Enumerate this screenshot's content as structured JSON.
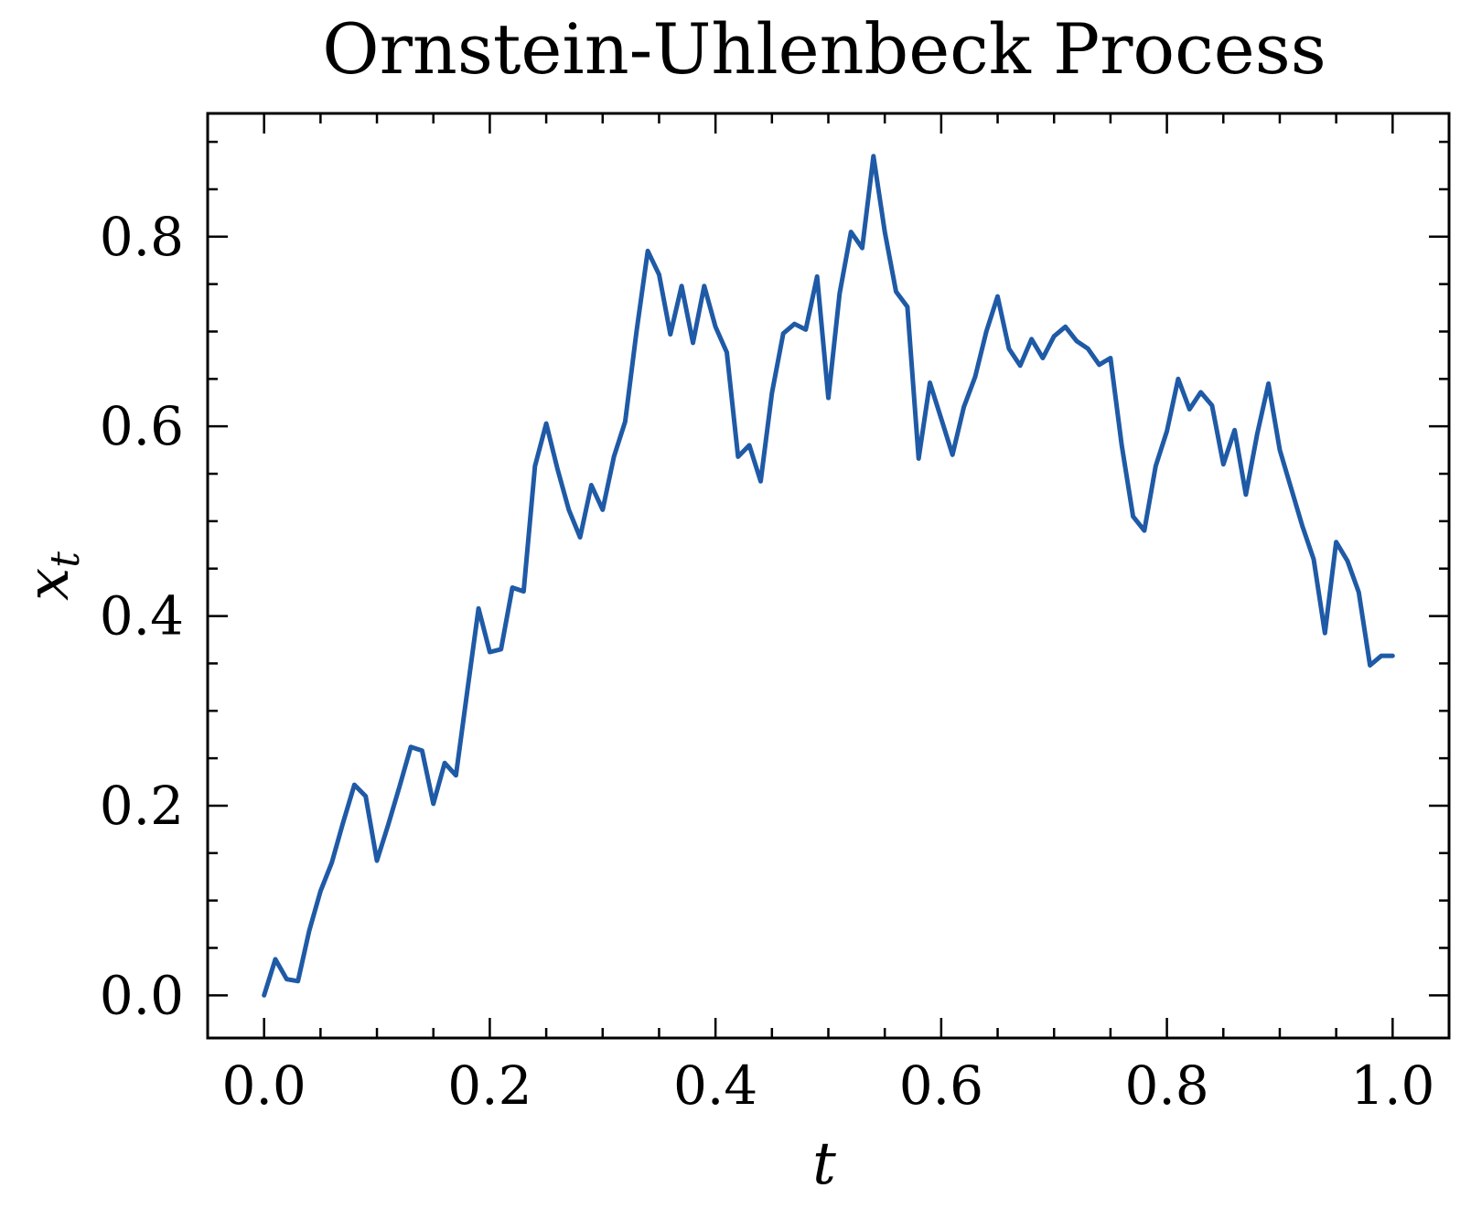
{
  "chart_data": {
    "type": "line",
    "title": "Ornstein-Uhlenbeck Process",
    "xlabel": "t",
    "ylabel": {
      "base": "x",
      "sub": "t"
    },
    "xlim": [
      -0.05,
      1.05
    ],
    "ylim": [
      -0.045,
      0.93
    ],
    "x_ticks": [
      0.0,
      0.2,
      0.4,
      0.6,
      0.8,
      1.0
    ],
    "x_tick_labels": [
      "0.0",
      "0.2",
      "0.4",
      "0.6",
      "0.8",
      "1.0"
    ],
    "x_minor_step": 0.05,
    "y_ticks": [
      0.0,
      0.2,
      0.4,
      0.6,
      0.8
    ],
    "y_tick_labels": [
      "0.0",
      "0.2",
      "0.4",
      "0.6",
      "0.8"
    ],
    "y_minor_step": 0.05,
    "grid": false,
    "color": "#1f5aa6",
    "series": [
      {
        "x": [
          0.0,
          0.01,
          0.02,
          0.03,
          0.04,
          0.05,
          0.06,
          0.07,
          0.08,
          0.09,
          0.1,
          0.11,
          0.12,
          0.13,
          0.14,
          0.15,
          0.16,
          0.17,
          0.18,
          0.19,
          0.2,
          0.21,
          0.22,
          0.23,
          0.24,
          0.25,
          0.26,
          0.27,
          0.28,
          0.29,
          0.3,
          0.31,
          0.32,
          0.33,
          0.34,
          0.35,
          0.36,
          0.37,
          0.38,
          0.39,
          0.4,
          0.41,
          0.42,
          0.43,
          0.44,
          0.45,
          0.46,
          0.47,
          0.48,
          0.49,
          0.5,
          0.51,
          0.52,
          0.53,
          0.54,
          0.55,
          0.56,
          0.57,
          0.58,
          0.59,
          0.6,
          0.61,
          0.62,
          0.63,
          0.64,
          0.65,
          0.66,
          0.67,
          0.68,
          0.69,
          0.7,
          0.71,
          0.72,
          0.73,
          0.74,
          0.75,
          0.76,
          0.77,
          0.78,
          0.79,
          0.8,
          0.81,
          0.82,
          0.83,
          0.84,
          0.85,
          0.86,
          0.87,
          0.88,
          0.89,
          0.9,
          0.91,
          0.92,
          0.93,
          0.94,
          0.95,
          0.96,
          0.97,
          0.98,
          0.99,
          1.0
        ],
        "y": [
          0.0,
          0.038,
          0.017,
          0.015,
          0.068,
          0.11,
          0.14,
          0.182,
          0.222,
          0.21,
          0.142,
          0.18,
          0.22,
          0.262,
          0.258,
          0.202,
          0.245,
          0.232,
          0.32,
          0.408,
          0.362,
          0.365,
          0.43,
          0.426,
          0.558,
          0.603,
          0.555,
          0.512,
          0.483,
          0.538,
          0.512,
          0.568,
          0.605,
          0.7,
          0.785,
          0.76,
          0.697,
          0.748,
          0.688,
          0.748,
          0.705,
          0.678,
          0.568,
          0.58,
          0.542,
          0.635,
          0.698,
          0.708,
          0.702,
          0.758,
          0.63,
          0.74,
          0.805,
          0.788,
          0.885,
          0.805,
          0.742,
          0.726,
          0.566,
          0.646,
          0.608,
          0.57,
          0.62,
          0.652,
          0.7,
          0.737,
          0.682,
          0.664,
          0.692,
          0.672,
          0.695,
          0.705,
          0.69,
          0.682,
          0.665,
          0.672,
          0.58,
          0.505,
          0.49,
          0.558,
          0.595,
          0.65,
          0.618,
          0.636,
          0.622,
          0.56,
          0.596,
          0.528,
          0.592,
          0.645,
          0.575,
          0.535,
          0.495,
          0.46,
          0.382,
          0.478,
          0.458,
          0.425,
          0.348,
          0.358,
          0.358
        ]
      }
    ]
  }
}
